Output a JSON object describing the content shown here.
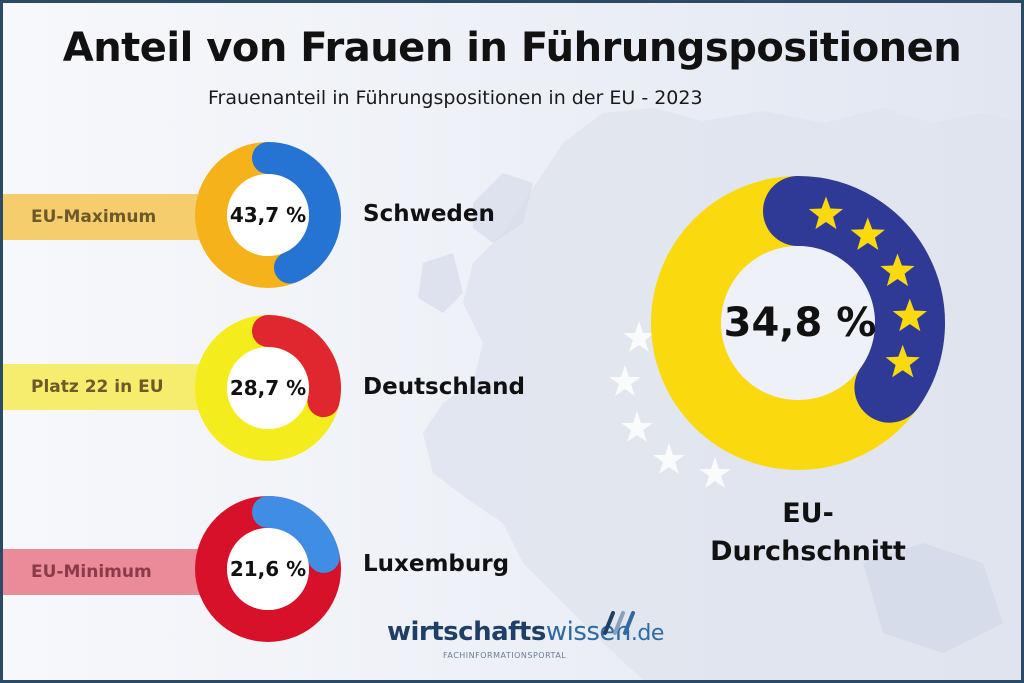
{
  "header": {
    "title": "Anteil von Frauen in Führungspositionen",
    "subtitle": "Frauenanteil in Führungspositionen in der EU - 2023"
  },
  "chart_data": [
    {
      "type": "pie",
      "variant": "donut",
      "country": "Schweden",
      "label": "EU-Maximum",
      "value": 43.7,
      "value_text": "43,7 %",
      "colors": {
        "share": "#2574d4",
        "rest": "#f6b21a",
        "band": "#f6cd6c"
      }
    },
    {
      "type": "pie",
      "variant": "donut",
      "country": "Deutschland",
      "label": "Platz 22 in EU",
      "value": 28.7,
      "value_text": "28,7 %",
      "colors": {
        "share": "#e0262e",
        "rest": "#f5ec1e",
        "band": "#f6ec6e"
      }
    },
    {
      "type": "pie",
      "variant": "donut",
      "country": "Luxemburg",
      "label": "EU-Minimum",
      "value": 21.6,
      "value_text": "21,6 %",
      "colors": {
        "share": "#3f8de4",
        "rest": "#d8112a",
        "band": "#eb8a98"
      }
    },
    {
      "type": "pie",
      "variant": "donut",
      "country": "EU-\nDurchschnitt",
      "value": 34.8,
      "value_text": "34,8 %",
      "colors": {
        "share": "#2e3a96",
        "rest": "#fad90f",
        "stars": "#fad90f"
      }
    }
  ],
  "logo": {
    "brand_bold": "wirtschafts",
    "brand_light": "wissen",
    "tld": ".de",
    "tagline": "FACHINFORMATIONSPORTAL"
  }
}
